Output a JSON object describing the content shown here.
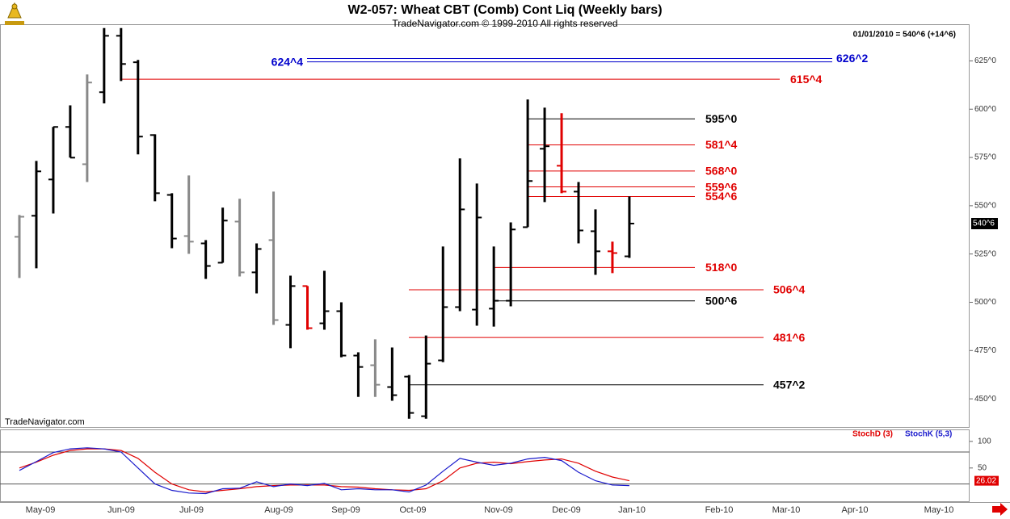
{
  "chart_data": [
    {
      "type": "ohlc",
      "title": "W2-057:  Wheat CBT (Comb) Cont Liq  (Weekly bars)",
      "subtitle": "TradeNavigator.com © 1999-2010 All rights reserved",
      "header_note": "01/01/2010 = 540^6 (+14^6)",
      "watermark": "TradeNavigator.com",
      "x_labels": [
        "May-09",
        "Jun-09",
        "Jul-09",
        "Aug-09",
        "Sep-09",
        "Oct-09",
        "Nov-09",
        "Dec-09",
        "Jan-10",
        "Feb-10",
        "Mar-10",
        "Apr-10",
        "May-10"
      ],
      "bars": {
        "open": [
          533.9,
          544.8,
          563.6,
          590.8,
          571.5,
          608.8,
          638,
          624.3,
          586.6,
          555.6,
          534.3,
          530.5,
          520.5,
          541.8,
          515.5,
          532.2,
          488.3,
          508.4,
          489.1,
          495.4,
          472.4,
          467.4,
          456.1,
          461.5,
          441,
          469.9,
          497.5,
          496.2,
          496.7,
          500.8,
          538.9,
          579.5,
          570.7,
          557.3,
          536.8,
          526.4,
          523.8
        ],
        "high": [
          545.2,
          573.2,
          590.8,
          602,
          618,
          642,
          642,
          625.5,
          587,
          556.5,
          565.7,
          532.2,
          549,
          553.6,
          530.5,
          557.3,
          513.8,
          508.4,
          516.3,
          500,
          474.1,
          480.8,
          476.6,
          462.3,
          482.8,
          528.9,
          574.5,
          561.5,
          528.9,
          541.4,
          605,
          600.8,
          597.9,
          562.3,
          548.1,
          531.4,
          554.8
        ],
        "low": [
          512.6,
          517.6,
          546,
          574.9,
          562.3,
          603,
          614.6,
          576.6,
          552.3,
          528,
          525.1,
          512.1,
          520.5,
          513.4,
          504.6,
          488.3,
          476.2,
          485.8,
          485.8,
          471.5,
          451,
          451,
          449,
          439.7,
          439.7,
          469,
          495.4,
          487.9,
          487.4,
          497.9,
          538.9,
          551.9,
          556.5,
          530.5,
          514.2,
          515.1,
          523
        ],
        "close": [
          544.3,
          567.8,
          590.8,
          574.9,
          613.8,
          638,
          623.4,
          585.8,
          556.5,
          533,
          531.4,
          518.8,
          542.3,
          515.5,
          527.6,
          490.8,
          508.4,
          486.6,
          495.4,
          472.4,
          466.5,
          457.3,
          451.9,
          442.7,
          468.2,
          497.5,
          548.1,
          543.9,
          500.8,
          537.7,
          562.8,
          580.8,
          557.3,
          537.2,
          526.4,
          525.5,
          540.75
        ],
        "colors": [
          "#888888",
          "#000000",
          "#000000",
          "#000000",
          "#888888",
          "#000000",
          "#000000",
          "#000000",
          "#000000",
          "#000000",
          "#888888",
          "#000000",
          "#000000",
          "#888888",
          "#000000",
          "#888888",
          "#000000",
          "#e00000",
          "#000000",
          "#000000",
          "#000000",
          "#888888",
          "#000000",
          "#000000",
          "#000000",
          "#000000",
          "#000000",
          "#000000",
          "#000000",
          "#000000",
          "#000000",
          "#000000",
          "#e00000",
          "#000000",
          "#000000",
          "#e00000",
          "#000000"
        ]
      },
      "last": {
        "value": 540.75,
        "label": "540^6"
      },
      "ylim": [
        435,
        644
      ],
      "yticks": [
        {
          "value": 450,
          "label": "450^0"
        },
        {
          "value": 475,
          "label": "475^0"
        },
        {
          "value": 500,
          "label": "500^0"
        },
        {
          "value": 525,
          "label": "525^0"
        },
        {
          "value": 550,
          "label": "550^0"
        },
        {
          "value": 575,
          "label": "575^0"
        },
        {
          "value": 600,
          "label": "600^0"
        },
        {
          "value": 625,
          "label": "625^0"
        }
      ],
      "levels": [
        {
          "value": 626.25,
          "label": "626^2",
          "color": "#0000cc"
        },
        {
          "value": 624.5,
          "label": "624^4",
          "color": "#0000cc"
        },
        {
          "value": 615.5,
          "label": "615^4",
          "color": "#e00000"
        },
        {
          "value": 595,
          "label": "595^0",
          "color": "#000000"
        },
        {
          "value": 581.5,
          "label": "581^4",
          "color": "#e00000"
        },
        {
          "value": 568,
          "label": "568^0",
          "color": "#e00000"
        },
        {
          "value": 559.75,
          "label": "559^6",
          "color": "#e00000"
        },
        {
          "value": 554.75,
          "label": "554^6",
          "color": "#e00000"
        },
        {
          "value": 518,
          "label": "518^0",
          "color": "#e00000"
        },
        {
          "value": 506.5,
          "label": "506^4",
          "color": "#e00000"
        },
        {
          "value": 500.75,
          "label": "500^6",
          "color": "#000000"
        },
        {
          "value": 481.75,
          "label": "481^6",
          "color": "#e00000"
        },
        {
          "value": 457.25,
          "label": "457^2",
          "color": "#000000"
        }
      ]
    },
    {
      "type": "line",
      "series": [
        {
          "name": "StochD (3)",
          "color": "#e00000",
          "values": [
            50,
            61,
            74,
            83,
            86,
            86,
            83,
            68,
            42,
            20,
            9,
            5,
            8,
            11,
            15,
            17,
            18,
            18,
            18,
            15,
            14,
            11,
            9,
            8,
            11,
            26,
            50,
            59,
            61,
            58,
            62,
            65,
            67,
            59,
            44,
            33,
            26.02
          ]
        },
        {
          "name": "StochK (5,3)",
          "color": "#1a1acc",
          "values": [
            45.5,
            62,
            79,
            86,
            88,
            86,
            80,
            50,
            20,
            8,
            3,
            2,
            11,
            12,
            24,
            15,
            20,
            17,
            21,
            9,
            11,
            9,
            9,
            5,
            18,
            44,
            68,
            61,
            55,
            59,
            67,
            70,
            64,
            42,
            26,
            18,
            17
          ]
        }
      ],
      "ylim": [
        -14,
        121
      ],
      "yticks": [
        50,
        100
      ],
      "levels": [
        80,
        20
      ]
    }
  ]
}
